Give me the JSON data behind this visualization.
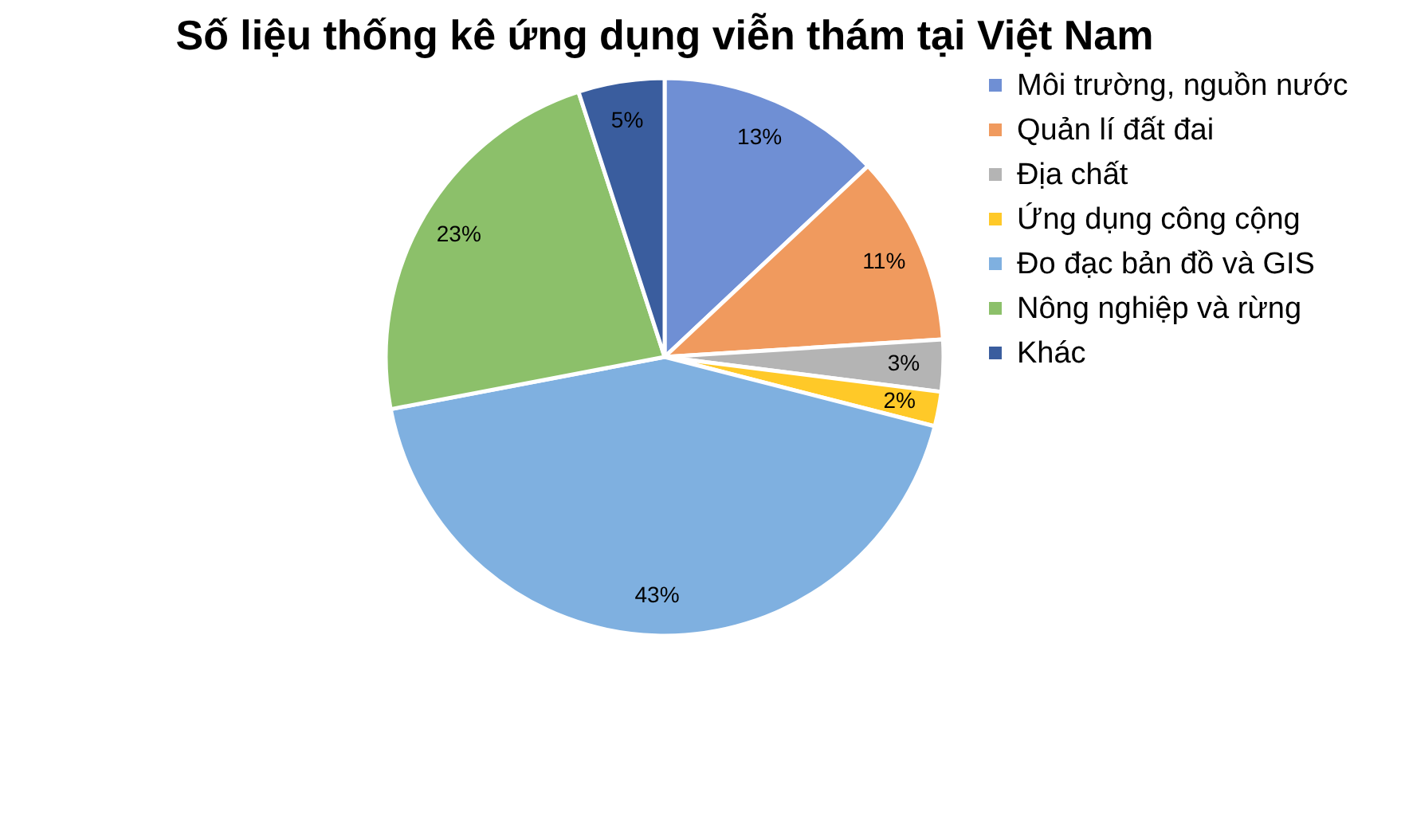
{
  "chart_data": {
    "type": "pie",
    "title": "Số liệu thống kê ứng dụng viễn thám tại Việt Nam",
    "categories": [
      "Môi trường, nguồn nước",
      "Quản lí đất đai",
      "Địa chất",
      "Ứng dụng công cộng",
      "Đo đạc bản đồ và GIS",
      "Nông nghiệp và rừng",
      "Khác"
    ],
    "values": [
      13,
      11,
      3,
      2,
      43,
      23,
      5
    ],
    "value_labels": [
      "13%",
      "11%",
      "3%",
      "2%",
      "43%",
      "23%",
      "5%"
    ],
    "colors": [
      "#6f8fd4",
      "#f09a5e",
      "#b4b4b4",
      "#ffc928",
      "#7fb0e0",
      "#8cc06a",
      "#3a5d9e"
    ],
    "legend": "right"
  }
}
